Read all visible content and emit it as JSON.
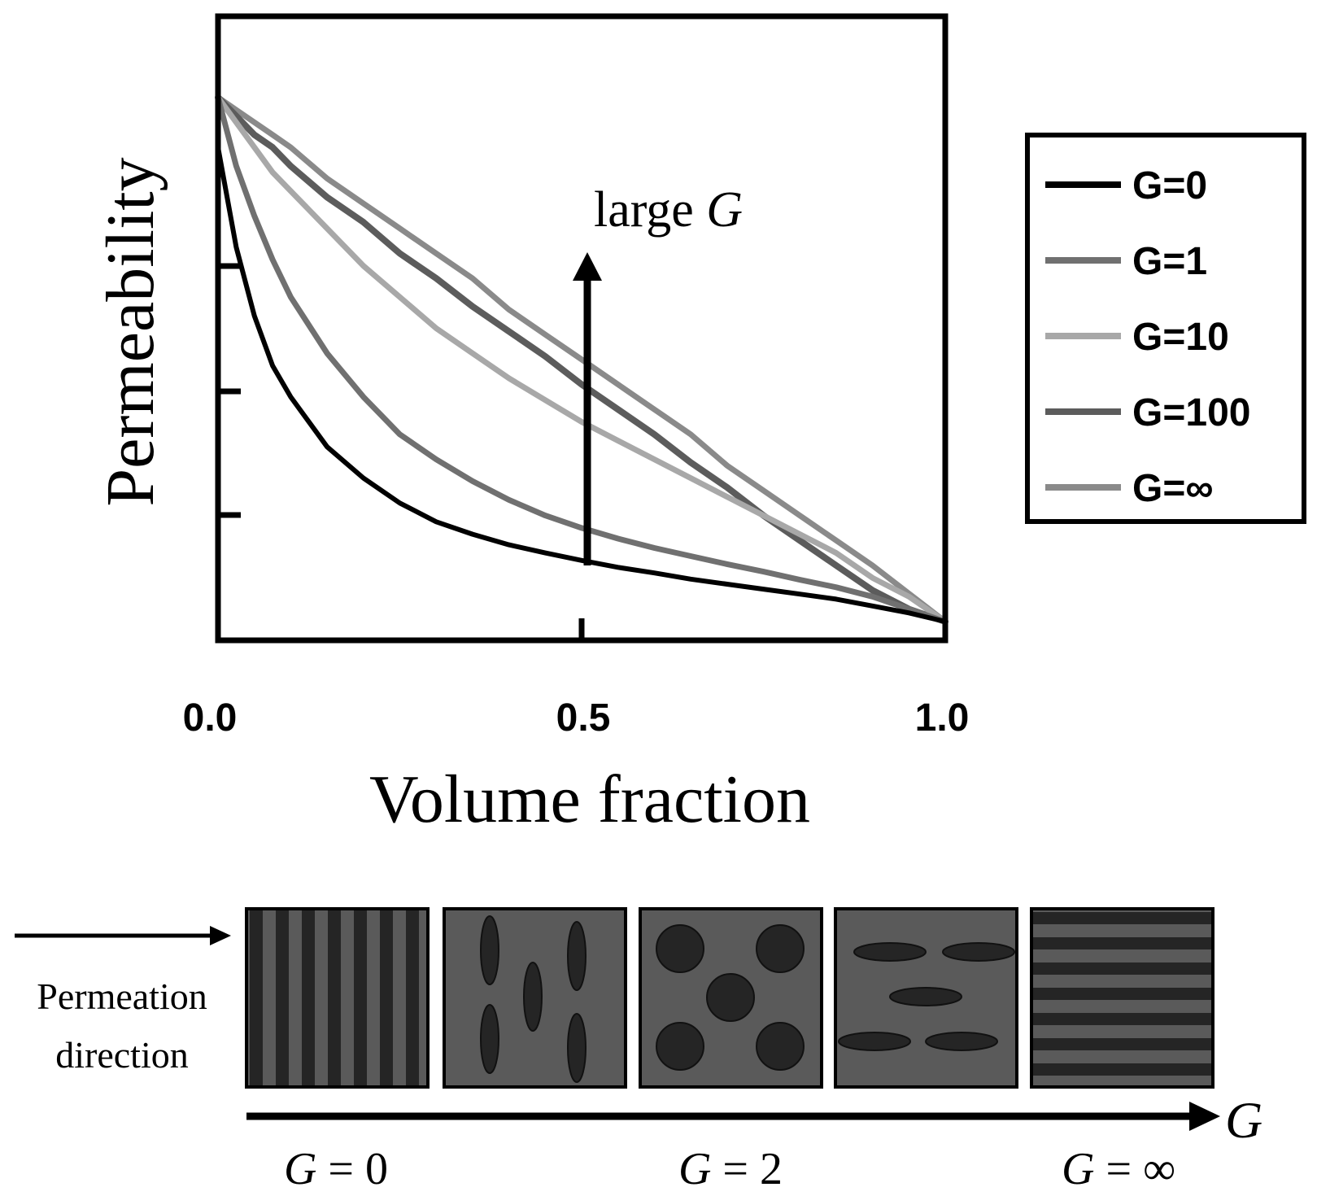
{
  "chart_data": {
    "type": "line",
    "xlabel": "Volume fraction",
    "ylabel": "Permeability",
    "xlim": [
      0,
      1
    ],
    "ylim": [
      0,
      1
    ],
    "x_tick_labels": [
      "0.0",
      "0.5",
      "1.0"
    ],
    "y_ticks_labeled": false,
    "legend_position": "right",
    "annotation": {
      "text": "large ",
      "italic_text": "G",
      "arrow": "up",
      "x": 0.5
    },
    "x": [
      0.0,
      0.025,
      0.05,
      0.075,
      0.1,
      0.15,
      0.2,
      0.25,
      0.3,
      0.35,
      0.4,
      0.45,
      0.5,
      0.55,
      0.6,
      0.65,
      0.7,
      0.75,
      0.8,
      0.85,
      0.9,
      0.95,
      1.0
    ],
    "series": [
      {
        "name": "G=0",
        "color": "#000000",
        "values": [
          0.79,
          0.63,
          0.52,
          0.44,
          0.39,
          0.31,
          0.26,
          0.22,
          0.19,
          0.17,
          0.153,
          0.14,
          0.128,
          0.117,
          0.108,
          0.098,
          0.09,
          0.082,
          0.074,
          0.066,
          0.055,
          0.044,
          0.03
        ]
      },
      {
        "name": "G=1",
        "color": "#707070",
        "values": [
          0.87,
          0.76,
          0.68,
          0.61,
          0.55,
          0.46,
          0.39,
          0.33,
          0.29,
          0.255,
          0.225,
          0.2,
          0.18,
          0.163,
          0.148,
          0.135,
          0.122,
          0.11,
          0.097,
          0.085,
          0.07,
          0.05,
          0.03
        ]
      },
      {
        "name": "G=10",
        "color": "#a8a8a8",
        "values": [
          0.87,
          0.83,
          0.79,
          0.75,
          0.72,
          0.66,
          0.6,
          0.55,
          0.5,
          0.46,
          0.42,
          0.385,
          0.35,
          0.32,
          0.29,
          0.26,
          0.23,
          0.2,
          0.17,
          0.14,
          0.1,
          0.07,
          0.03
        ]
      },
      {
        "name": "G=100",
        "color": "#5c5c5c",
        "values": [
          0.87,
          0.84,
          0.81,
          0.79,
          0.76,
          0.71,
          0.67,
          0.62,
          0.58,
          0.535,
          0.495,
          0.455,
          0.41,
          0.37,
          0.33,
          0.285,
          0.245,
          0.2,
          0.16,
          0.12,
          0.08,
          0.05,
          0.03
        ]
      },
      {
        "name": "G=∞",
        "color": "#8a8a8a",
        "values": [
          0.87,
          0.85,
          0.83,
          0.81,
          0.79,
          0.74,
          0.7,
          0.66,
          0.62,
          0.58,
          0.53,
          0.49,
          0.45,
          0.41,
          0.37,
          0.33,
          0.28,
          0.24,
          0.2,
          0.16,
          0.12,
          0.075,
          0.03
        ]
      }
    ]
  },
  "schematic": {
    "direction_label_line1": "Permeation",
    "direction_label_line2": "direction",
    "g_axis_label": "G",
    "panels": [
      "vertical-layers",
      "vertical-ellipses",
      "circles",
      "horizontal-ellipses",
      "horizontal-layers"
    ],
    "bottom_labels": [
      {
        "var": "G",
        "eq": " = ",
        "val": "0"
      },
      {
        "var": "G",
        "eq": " = ",
        "val": "2"
      },
      {
        "var": "G",
        "eq": " = ",
        "val": "∞"
      }
    ],
    "colors": {
      "matrix": "#5a5a5a",
      "filler": "#252525",
      "outline": "#000000"
    }
  }
}
